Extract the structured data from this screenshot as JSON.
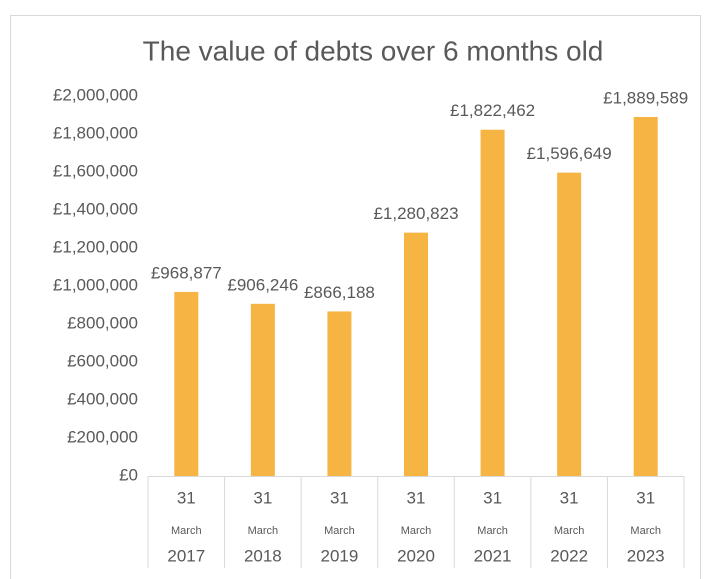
{
  "chart_data": {
    "type": "bar",
    "title": "The value of debts over 6 months old",
    "categories": [
      [
        "31",
        "March",
        "2017"
      ],
      [
        "31",
        "March",
        "2018"
      ],
      [
        "31",
        "March",
        "2019"
      ],
      [
        "31",
        "March",
        "2020"
      ],
      [
        "31",
        "March",
        "2021"
      ],
      [
        "31",
        "March",
        "2022"
      ],
      [
        "31",
        "March",
        "2023"
      ]
    ],
    "values": [
      968877,
      906246,
      866188,
      1280823,
      1822462,
      1596649,
      1889589
    ],
    "value_labels": [
      "£968,877",
      "£906,246",
      "£866,188",
      "£1,280,823",
      "£1,822,462",
      "£1,596,649",
      "£1,889,589"
    ],
    "color": "#f6b443",
    "ylim": [
      0,
      2000000
    ],
    "yticks": [
      {
        "value": 0,
        "label": "£0"
      },
      {
        "value": 200000,
        "label": "£200,000"
      },
      {
        "value": 400000,
        "label": "£400,000"
      },
      {
        "value": 600000,
        "label": "£600,000"
      },
      {
        "value": 800000,
        "label": "£800,000"
      },
      {
        "value": 1000000,
        "label": "£1,000,000"
      },
      {
        "value": 1200000,
        "label": "£1,200,000"
      },
      {
        "value": 1400000,
        "label": "£1,400,000"
      },
      {
        "value": 1600000,
        "label": "£1,600,000"
      },
      {
        "value": 1800000,
        "label": "£1,800,000"
      },
      {
        "value": 2000000,
        "label": "£2,000,000"
      }
    ],
    "grid": false
  }
}
